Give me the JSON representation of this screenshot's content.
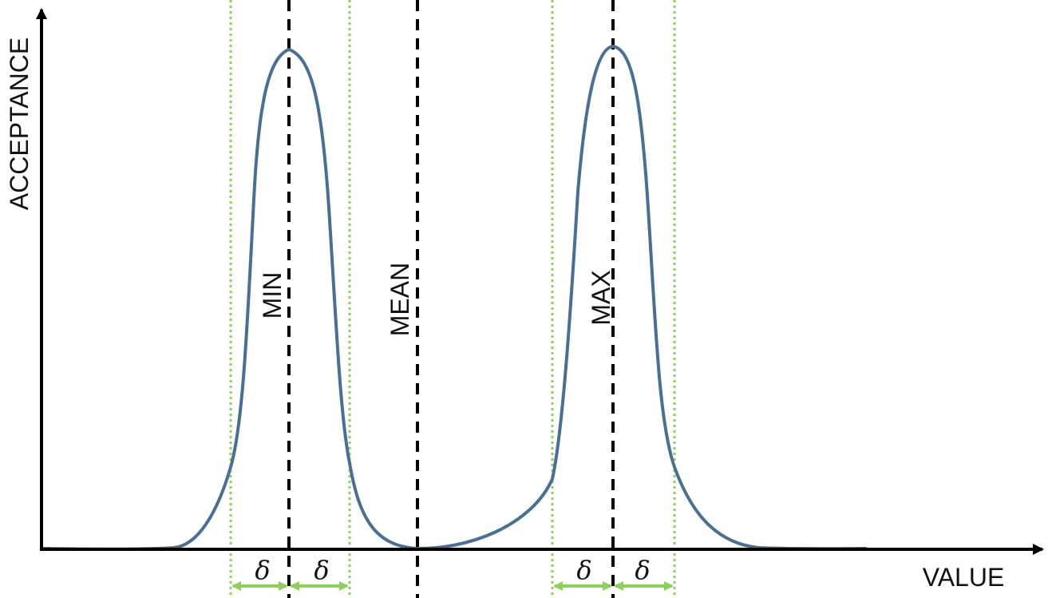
{
  "axes": {
    "y_label": "ACCEPTANCE",
    "x_label": "VALUE"
  },
  "markers": {
    "min_label": "MIN",
    "mean_label": "MEAN",
    "max_label": "MAX"
  },
  "delta_symbol": "δ",
  "colors": {
    "curve": "#4a6f93",
    "axis": "#000000",
    "marker_line": "#000000",
    "delta_line": "#8ccf5a",
    "delta_arrow": "#8ccf5a"
  }
}
